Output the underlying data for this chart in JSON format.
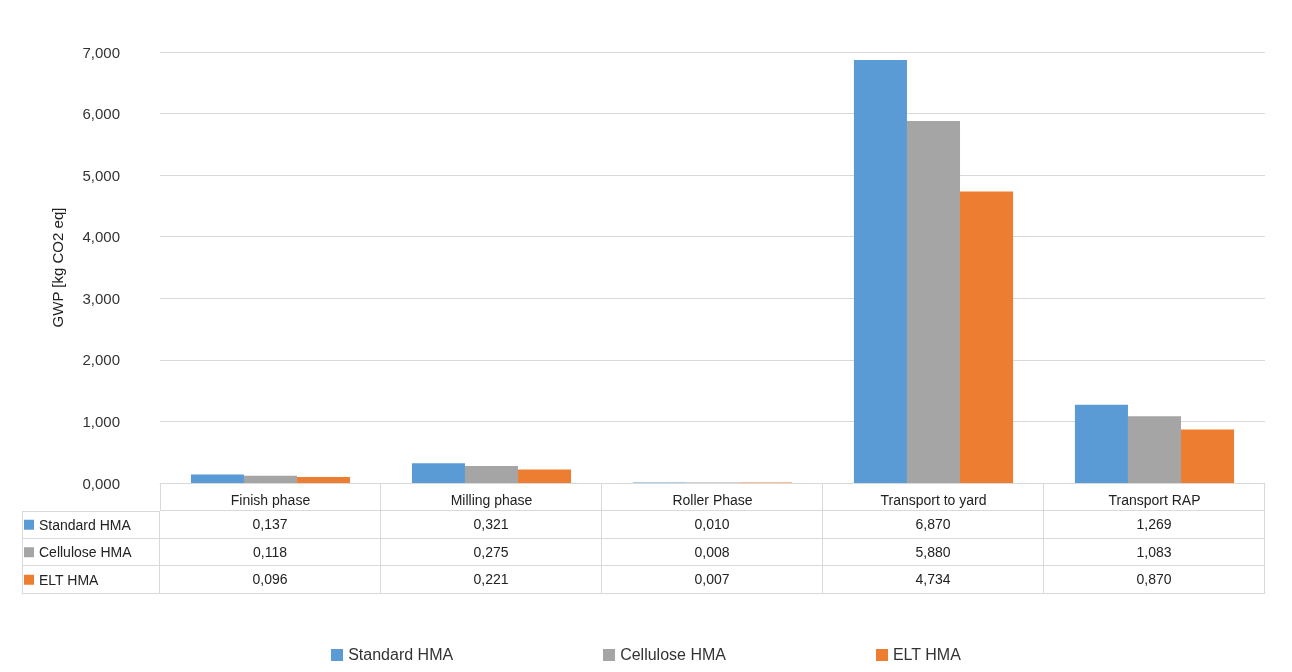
{
  "chart_data": {
    "type": "bar",
    "ylabel": "GWP [kg CO2 eq]",
    "categories": [
      "Finish phase",
      "Milling phase",
      "Roller Phase",
      "Transport to yard",
      "Transport RAP"
    ],
    "series": [
      {
        "name": "Standard HMA",
        "color": "#5b9bd5",
        "values": [
          0.137,
          0.321,
          0.01,
          6.87,
          1.269
        ],
        "value_labels": [
          "0,137",
          "0,321",
          "0,010",
          "6,870",
          "1,269"
        ]
      },
      {
        "name": "Cellulose HMA",
        "color": "#a5a5a5",
        "values": [
          0.118,
          0.275,
          0.008,
          5.88,
          1.083
        ],
        "value_labels": [
          "0,118",
          "0,275",
          "0,008",
          "5,880",
          "1,083"
        ]
      },
      {
        "name": "ELT HMA",
        "color": "#ed7d31",
        "values": [
          0.096,
          0.221,
          0.007,
          4.734,
          0.87
        ],
        "value_labels": [
          "0,096",
          "0,221",
          "0,007",
          "4,734",
          "0,870"
        ]
      }
    ],
    "ylim": [
      0,
      7
    ],
    "yticks": [
      {
        "value": 0,
        "label": "0,000"
      },
      {
        "value": 1,
        "label": "1,000"
      },
      {
        "value": 2,
        "label": "2,000"
      },
      {
        "value": 3,
        "label": "3,000"
      },
      {
        "value": 4,
        "label": "4,000"
      },
      {
        "value": 5,
        "label": "5,000"
      },
      {
        "value": 6,
        "label": "6,000"
      },
      {
        "value": 7,
        "label": "7,000"
      }
    ],
    "grid": "y",
    "legend": "bottom"
  }
}
